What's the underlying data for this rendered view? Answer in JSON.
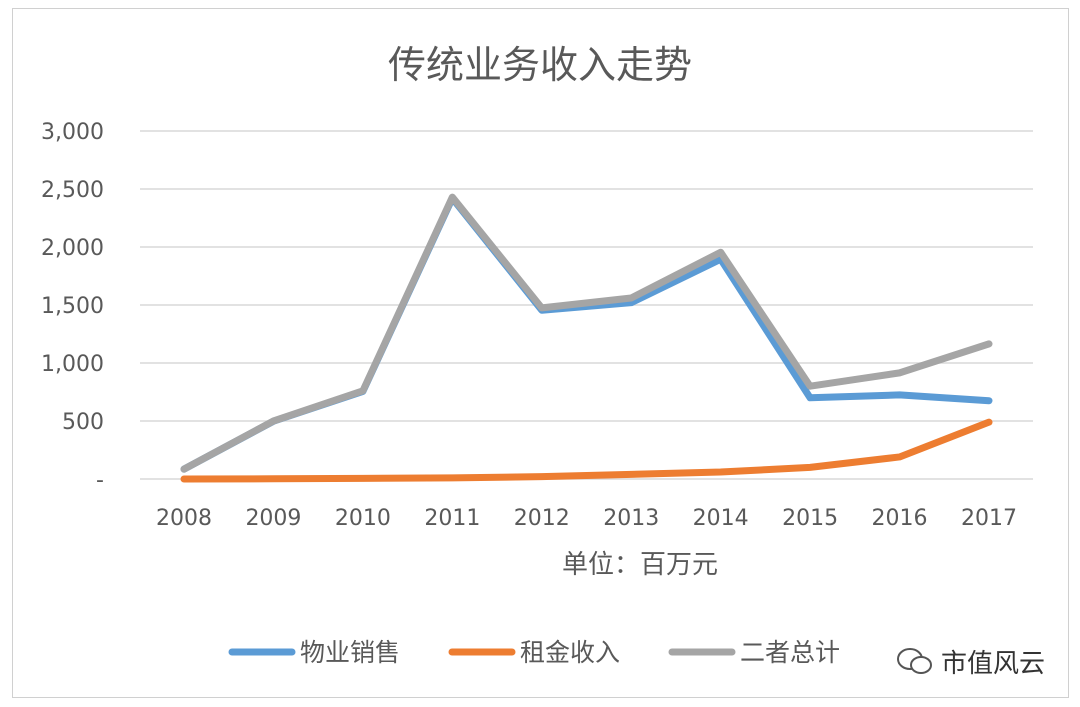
{
  "chart_data": {
    "type": "line",
    "title": "传统业务收入走势",
    "xlabel": "单位：百万元",
    "ylabel": "",
    "categories": [
      "2008",
      "2009",
      "2010",
      "2011",
      "2012",
      "2013",
      "2014",
      "2015",
      "2016",
      "2017"
    ],
    "ylim": [
      0,
      3000
    ],
    "yticks": [
      0,
      500,
      1000,
      1500,
      2000,
      2500,
      3000
    ],
    "ytick_labels": [
      "-",
      "500",
      "1,000",
      "1,500",
      "2,000",
      "2,500",
      "3,000"
    ],
    "grid": true,
    "legend": "bottom",
    "series": [
      {
        "name": "物业销售",
        "color": "#5b9bd5",
        "values": [
          85,
          498,
          755,
          2420,
          1455,
          1520,
          1895,
          700,
          725,
          675
        ]
      },
      {
        "name": "租金收入",
        "color": "#ed7d31",
        "values": [
          0,
          2,
          5,
          10,
          20,
          40,
          60,
          100,
          190,
          490
        ]
      },
      {
        "name": "二者总计",
        "color": "#a5a5a5",
        "values": [
          85,
          500,
          760,
          2430,
          1475,
          1560,
          1955,
          800,
          915,
          1165
        ]
      }
    ]
  },
  "watermark": {
    "text": "市值风云",
    "icon": "wechat-icon"
  }
}
